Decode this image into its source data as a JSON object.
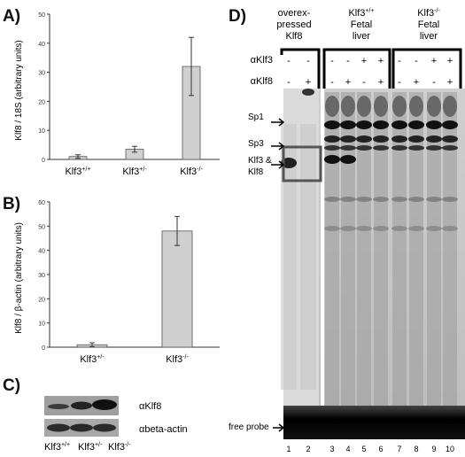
{
  "panels": {
    "a": "A)",
    "b": "B)",
    "c": "C)",
    "d": "D)"
  },
  "chart_data": [
    {
      "type": "bar",
      "ylabel": "Klf8 / 18S (arbitrary units)",
      "categories": [
        "Klf3+/+",
        "Klf3+/-",
        "Klf3-/-"
      ],
      "category_labels": [
        {
          "base": "Klf3",
          "sup": "+/+"
        },
        {
          "base": "Klf3",
          "sup": "+/-"
        },
        {
          "base": "Klf3",
          "sup": "-/-"
        }
      ],
      "values": [
        1,
        3.5,
        32
      ],
      "errors": [
        0.6,
        1,
        10
      ],
      "ylim": [
        0,
        50
      ],
      "yticks": [
        0,
        10,
        20,
        30,
        40,
        50
      ],
      "bar_color": "#cfcfcf"
    },
    {
      "type": "bar",
      "ylabel": "Klf8 / β-actin (arbitrary units)",
      "categories": [
        "Klf3+/-",
        "Klf3-/-"
      ],
      "category_labels": [
        {
          "base": "Klf3",
          "sup": "+/-"
        },
        {
          "base": "Klf3",
          "sup": "-/-"
        }
      ],
      "values": [
        1,
        48
      ],
      "errors": [
        0.8,
        6
      ],
      "ylim": [
        0,
        60
      ],
      "yticks": [
        0,
        10,
        20,
        30,
        40,
        50,
        60
      ],
      "bar_color": "#cfcfcf"
    }
  ],
  "westernC": {
    "labels": [
      "αKlf8",
      "αbeta-actin"
    ],
    "lanes": [
      {
        "base": "Klf3",
        "sup": "+/+"
      },
      {
        "base": "Klf3",
        "sup": "+/-"
      },
      {
        "base": "Klf3",
        "sup": "-/-"
      }
    ]
  },
  "gelD": {
    "groups": [
      {
        "line1": "overex-",
        "line2": "pressed",
        "line3": "Klf8"
      },
      {
        "line1": "Klf3",
        "line1sup": "+/+",
        "line2": "Fetal",
        "line3": "liver"
      },
      {
        "line1": "Klf3",
        "line1sup": "-/-",
        "line2": "Fetal",
        "line3": "liver"
      }
    ],
    "rows": [
      {
        "label": "αKlf3",
        "signs": [
          "-",
          "-",
          "-",
          "-",
          "+",
          "+",
          "-",
          "-",
          "+",
          "+"
        ]
      },
      {
        "label": "αKlf8",
        "signs": [
          "-",
          "+",
          "-",
          "+",
          "-",
          "+",
          "-",
          "+",
          "-",
          "+"
        ]
      }
    ],
    "bands": [
      "Sp1",
      "Sp3",
      "Klf3 &",
      "Klf8",
      "free probe"
    ],
    "lane_numbers": [
      "1",
      "2",
      "3",
      "4",
      "5",
      "6",
      "7",
      "8",
      "9",
      "10"
    ]
  }
}
